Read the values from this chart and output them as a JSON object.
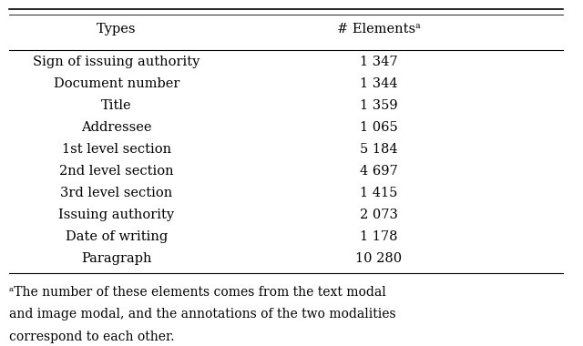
{
  "col_headers": [
    "Types",
    "# Elementsᵃ"
  ],
  "rows": [
    [
      "Sign of issuing authority",
      "1 347"
    ],
    [
      "Document number",
      "1 344"
    ],
    [
      "Title",
      "1 359"
    ],
    [
      "Addressee",
      "1 065"
    ],
    [
      "1st level section",
      "5 184"
    ],
    [
      "2nd level section",
      "4 697"
    ],
    [
      "3rd level section",
      "1 415"
    ],
    [
      "Issuing authority",
      "2 073"
    ],
    [
      "Date of writing",
      "1 178"
    ],
    [
      "Paragraph",
      "10 280"
    ]
  ],
  "footnote_line1": "ᵃThe number of these elements comes from the text modal",
  "footnote_line2": "and image modal, and the annotations of the two modalities",
  "footnote_line3": "correspond to each other.",
  "bg_color": "#ffffff",
  "text_color": "#000000",
  "header_fontsize": 10.5,
  "body_fontsize": 10.5,
  "footnote_fontsize": 10.0,
  "figsize": [
    6.4,
    3.8
  ],
  "dpi": 100
}
